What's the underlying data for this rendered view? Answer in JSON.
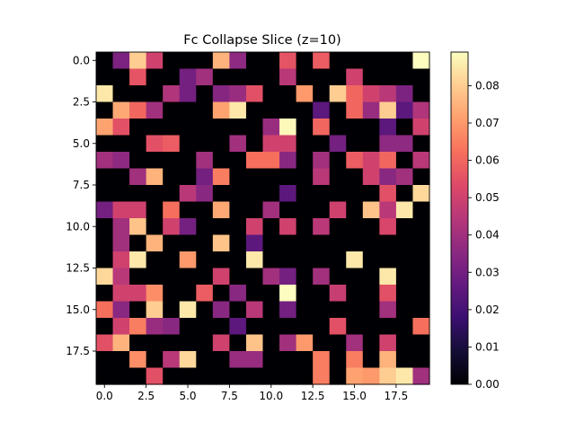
{
  "chart_data": {
    "type": "heatmap",
    "title": "Fc Collapse Slice (z=10)",
    "xlabel": "",
    "ylabel": "",
    "colormap": "magma",
    "x_range": [
      -0.5,
      19.5
    ],
    "y_range": [
      19.5,
      -0.5
    ],
    "x_ticks": [
      "0.0",
      "2.5",
      "5.0",
      "7.5",
      "10.0",
      "12.5",
      "15.0",
      "17.5"
    ],
    "y_ticks": [
      "0.0",
      "2.5",
      "5.0",
      "7.5",
      "10.0",
      "12.5",
      "15.0",
      "17.5"
    ],
    "colorbar": {
      "vmin": 0.0,
      "vmax": 0.089,
      "ticks": [
        "0.00",
        "0.01",
        "0.02",
        "0.03",
        "0.04",
        "0.05",
        "0.06",
        "0.07",
        "0.08"
      ]
    },
    "grid": false,
    "matrix": [
      [
        0,
        0.032,
        0.08,
        0.05,
        0,
        0,
        0,
        0.075,
        0.036,
        0,
        0,
        0.056,
        0,
        0.058,
        0,
        0,
        0,
        0,
        0,
        0.089
      ],
      [
        0,
        0,
        0.056,
        0,
        0,
        0.03,
        0.04,
        0,
        0,
        0,
        0,
        0.045,
        0,
        0,
        0,
        0.05,
        0,
        0,
        0,
        0
      ],
      [
        0.085,
        0,
        0,
        0,
        0.043,
        0.03,
        0,
        0.034,
        0.038,
        0.055,
        0,
        0,
        0.07,
        0,
        0.08,
        0.06,
        0.05,
        0.045,
        0.032,
        0
      ],
      [
        0,
        0.073,
        0.06,
        0.04,
        0,
        0,
        0,
        0.072,
        0.085,
        0,
        0,
        0,
        0,
        0.025,
        0,
        0.06,
        0.038,
        0.08,
        0.025,
        0.043
      ],
      [
        0.072,
        0.055,
        0,
        0,
        0,
        0,
        0,
        0,
        0,
        0,
        0.038,
        0.088,
        0,
        0.06,
        0,
        0,
        0,
        0.025,
        0,
        0.05
      ],
      [
        0,
        0,
        0,
        0.055,
        0.058,
        0,
        0,
        0,
        0.04,
        0,
        0.05,
        0.05,
        0,
        0,
        0.03,
        0,
        0,
        0.036,
        0.036,
        0
      ],
      [
        0.04,
        0.036,
        0,
        0,
        0,
        0,
        0.04,
        0,
        0,
        0.062,
        0.062,
        0.035,
        0,
        0.04,
        0,
        0.058,
        0.05,
        0.06,
        0,
        0.045
      ],
      [
        0,
        0,
        0.04,
        0.075,
        0,
        0,
        0.03,
        0.065,
        0,
        0,
        0,
        0,
        0,
        0.045,
        0,
        0,
        0.05,
        0.035,
        0.04,
        0
      ],
      [
        0,
        0,
        0,
        0,
        0,
        0.045,
        0.035,
        0,
        0,
        0,
        0,
        0.025,
        0,
        0,
        0,
        0,
        0,
        0.055,
        0,
        0.082
      ],
      [
        0.03,
        0.05,
        0.05,
        0,
        0.062,
        0,
        0,
        0.073,
        0,
        0,
        0.04,
        0,
        0,
        0,
        0.05,
        0,
        0.078,
        0.045,
        0.085,
        0
      ],
      [
        0,
        0.04,
        0.078,
        0,
        0.05,
        0.03,
        0,
        0,
        0,
        0.05,
        0,
        0.05,
        0,
        0.045,
        0,
        0,
        0,
        0.052,
        0,
        0
      ],
      [
        0,
        0.04,
        0,
        0.075,
        0,
        0,
        0,
        0.078,
        0,
        0.025,
        0,
        0,
        0,
        0,
        0,
        0,
        0,
        0,
        0,
        0
      ],
      [
        0,
        0.05,
        0.085,
        0,
        0,
        0.07,
        0,
        0,
        0,
        0.085,
        0,
        0,
        0,
        0,
        0,
        0.085,
        0,
        0,
        0,
        0
      ],
      [
        0.082,
        0.045,
        0,
        0,
        0,
        0,
        0,
        0.05,
        0,
        0,
        0.04,
        0.03,
        0,
        0.04,
        0,
        0,
        0,
        0.085,
        0,
        0
      ],
      [
        0,
        0.05,
        0.05,
        0.068,
        0,
        0,
        0.058,
        0,
        0.035,
        0,
        0,
        0.089,
        0,
        0,
        0.048,
        0,
        0,
        0.055,
        0,
        0
      ],
      [
        0.062,
        0.035,
        0,
        0.08,
        0,
        0.085,
        0,
        0.035,
        0,
        0.045,
        0,
        0.03,
        0,
        0,
        0,
        0,
        0,
        0.04,
        0,
        0
      ],
      [
        0,
        0.05,
        0.065,
        0.038,
        0.035,
        0,
        0,
        0,
        0.025,
        0,
        0,
        0,
        0,
        0,
        0.055,
        0,
        0,
        0,
        0,
        0.062
      ],
      [
        0.055,
        0.075,
        0,
        0,
        0,
        0,
        0,
        0.05,
        0,
        0.078,
        0,
        0.04,
        0.07,
        0,
        0,
        0.04,
        0,
        0.05,
        0,
        0
      ],
      [
        0,
        0,
        0.068,
        0,
        0.045,
        0.082,
        0,
        0,
        0.038,
        0.038,
        0,
        0,
        0,
        0.065,
        0,
        0.065,
        0,
        0.075,
        0,
        0
      ],
      [
        0,
        0,
        0,
        0.055,
        0,
        0,
        0,
        0,
        0,
        0,
        0,
        0,
        0,
        0.065,
        0,
        0.072,
        0.07,
        0.08,
        0.085,
        0.04
      ]
    ]
  }
}
